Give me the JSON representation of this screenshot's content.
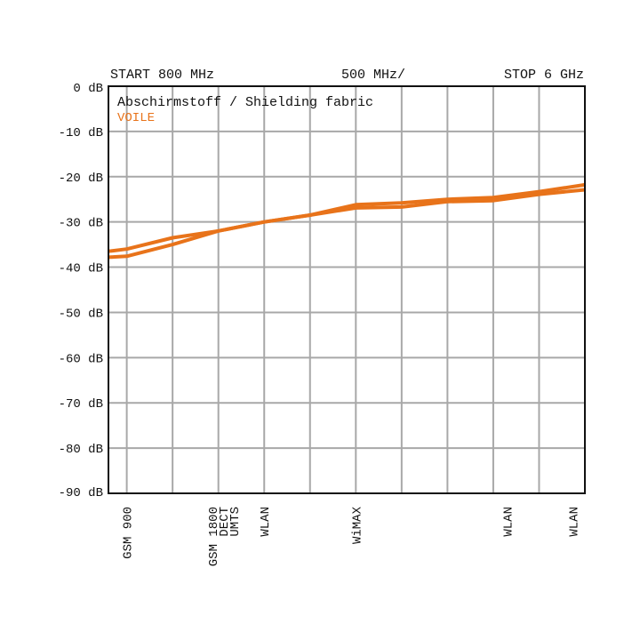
{
  "chart_data": {
    "type": "line",
    "header": {
      "start": "START 800 MHz",
      "per_div": "500 MHz/",
      "stop": "STOP 6 GHz"
    },
    "title": "Abschirmstoff / Shielding fabric",
    "legend": [
      {
        "name": "VOILE",
        "color": "#e8731a"
      }
    ],
    "xlabel": "",
    "ylabel": "",
    "xlim": [
      800,
      6000
    ],
    "ylim": [
      -90,
      0
    ],
    "x_grid": [
      1000,
      1500,
      2000,
      2500,
      3000,
      3500,
      4000,
      4500,
      5000,
      5500
    ],
    "y_ticks": [
      0,
      -10,
      -20,
      -30,
      -40,
      -50,
      -60,
      -70,
      -80,
      -90
    ],
    "y_tick_labels": [
      "0 dB",
      "-10 dB",
      "-20 dB",
      "-30 dB",
      "-40 dB",
      "-50 dB",
      "-60 dB",
      "-70 dB",
      "-80 dB",
      "-90 dB"
    ],
    "grid": true,
    "band_labels": [
      {
        "freq": 1000,
        "lines": [
          "GSM 900"
        ]
      },
      {
        "freq": 2050,
        "lines": [
          "GSM 1800",
          "DECT",
          "UMTS"
        ]
      },
      {
        "freq": 2500,
        "lines": [
          "WLAN"
        ]
      },
      {
        "freq": 3500,
        "lines": [
          "WiMAX"
        ]
      },
      {
        "freq": 5150,
        "lines": [
          "WLAN"
        ]
      },
      {
        "freq": 5870,
        "lines": [
          "WLAN"
        ]
      }
    ],
    "x": [
      800,
      1000,
      1500,
      2000,
      2500,
      3000,
      3500,
      4000,
      4500,
      5000,
      5500,
      6000
    ],
    "series": [
      {
        "name": "VOILE (trace 1)",
        "color": "#e8731a",
        "values": [
          -36.5,
          -36.0,
          -33.5,
          -32.0,
          -30.0,
          -28.5,
          -26.2,
          -25.8,
          -25.0,
          -24.6,
          -23.3,
          -21.8
        ]
      },
      {
        "name": "VOILE (trace 2)",
        "color": "#e8731a",
        "values": [
          -37.8,
          -37.6,
          -35.0,
          -32.0,
          -30.0,
          -28.5,
          -26.9,
          -26.7,
          -25.5,
          -25.3,
          -23.9,
          -22.9
        ]
      }
    ]
  }
}
